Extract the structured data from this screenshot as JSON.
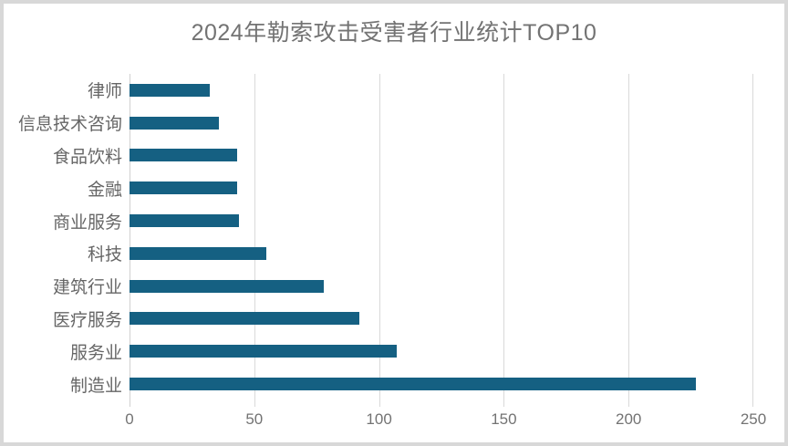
{
  "chart_data": {
    "type": "bar",
    "orientation": "horizontal",
    "title": "2024年勒索攻击受害者行业统计TOP10",
    "categories": [
      "律师",
      "信息技术咨询",
      "食品饮料",
      "金融",
      "商业服务",
      "科技",
      "建筑行业",
      "医疗服务",
      "服务业",
      "制造业"
    ],
    "values": [
      32,
      36,
      43,
      43,
      44,
      55,
      78,
      92,
      107,
      227
    ],
    "xlabel": "",
    "ylabel": "",
    "xlim": [
      0,
      250
    ],
    "x_ticks": [
      0,
      50,
      100,
      150,
      200,
      250
    ],
    "grid": "vertical-gridlines-on",
    "legend": "none",
    "data_labels": "none",
    "colors": {
      "bar": "#156082",
      "gridline": "#D9D9D9",
      "axis_line": "#D0D0D0",
      "title_text": "#737373",
      "category_text": "#666666",
      "tick_text": "#737373",
      "frame_border": "#D8D8D8",
      "background": "#FFFFFF"
    }
  }
}
